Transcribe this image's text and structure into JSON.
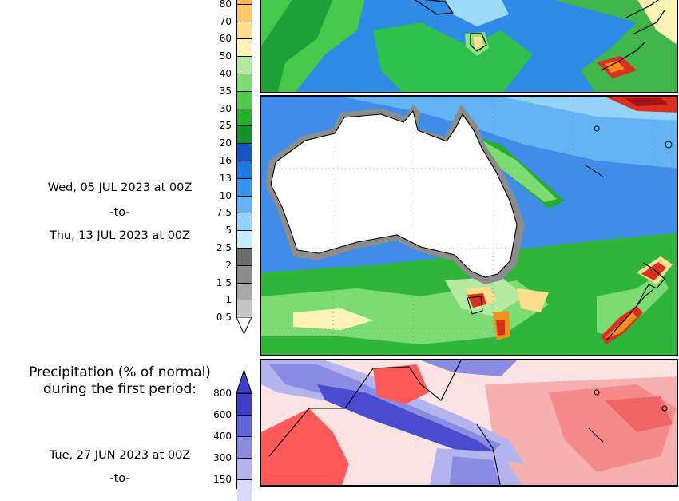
{
  "precip_scale": {
    "labels": [
      "80",
      "70",
      "60",
      "50",
      "40",
      "35",
      "30",
      "25",
      "20",
      "16",
      "13",
      "10",
      "7.5",
      "5",
      "2.5",
      "2",
      "1.5",
      "1",
      "0.5"
    ],
    "colors": [
      "#f7b34f",
      "#fbc968",
      "#fde08e",
      "#fdf3b4",
      "#b6e9a0",
      "#7ddb73",
      "#53c94c",
      "#26ad2a",
      "#10922a",
      "#1158c5",
      "#1d78e0",
      "#3793ef",
      "#63b3f5",
      "#95d3fb",
      "#c4ecfd",
      "#6c6c6c",
      "#8c8c8c",
      "#a8a8a8",
      "#c4c4c4"
    ]
  },
  "period_current": {
    "start": "Wed, 05 JUL 2023 at 00Z",
    "separator": "-to-",
    "end": "Thu, 13 JUL 2023 at 00Z"
  },
  "anomaly_section": {
    "title_line1": "Precipitation (% of normal)",
    "title_line2": "during the first period:",
    "scale_labels": [
      "800",
      "600",
      "400",
      "300",
      "150"
    ],
    "scale_colors": [
      "#3f3fc8",
      "#6464d8",
      "#8b8be4",
      "#b4b4ef",
      "#dadaf8"
    ],
    "start": "Tue, 27 JUN 2023 at 00Z",
    "separator_partial": "-to-"
  },
  "colors": {
    "ocean_mid": "#3f8de8",
    "ocean_light": "#89cbf6",
    "green": "#2fb53a",
    "land": "#ffffff",
    "coast": "#000000",
    "dry_red": "#ff5a5a",
    "wet_blue": "#4b4bd0"
  }
}
